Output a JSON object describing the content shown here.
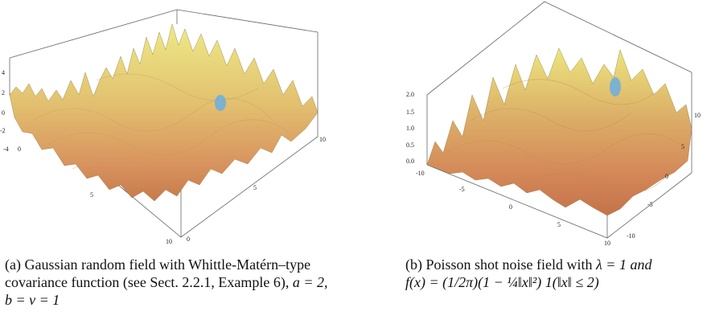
{
  "figures": [
    {
      "label": "(a)",
      "caption_text": "Gaussian random field with Whittle-Matérn–type covariance function (see Sect. 2.2.1, Example 6),",
      "caption_math": "a = 2, b = ν = 1",
      "axis_ticks": {
        "z": [
          "4",
          "2",
          "0",
          "-2",
          "-4"
        ],
        "x_front": [
          "0",
          "5",
          "10"
        ],
        "y_side": [
          "10",
          "5",
          "0"
        ]
      }
    },
    {
      "label": "(b)",
      "caption_text": "Poisson shot noise field with",
      "caption_math1": "λ = 1 and",
      "caption_math2": "f(x) = (1/2π)(1 − ¼‖x‖²) 1(‖x‖ ≤ 2)",
      "axis_ticks": {
        "z": [
          "2.0",
          "1.5",
          "1.0",
          "0.5",
          "0.0"
        ],
        "x_front": [
          "-10",
          "-5",
          "0",
          "5",
          "10"
        ],
        "y_side": [
          "10",
          "5",
          "0",
          "-5",
          "-10"
        ]
      }
    }
  ],
  "colors": {
    "surface_peak": "#e8e47a",
    "surface_mid": "#d99a62",
    "surface_low": "#c87a4e",
    "surface_highlight": "#6aaee0",
    "box_line": "#555555"
  }
}
